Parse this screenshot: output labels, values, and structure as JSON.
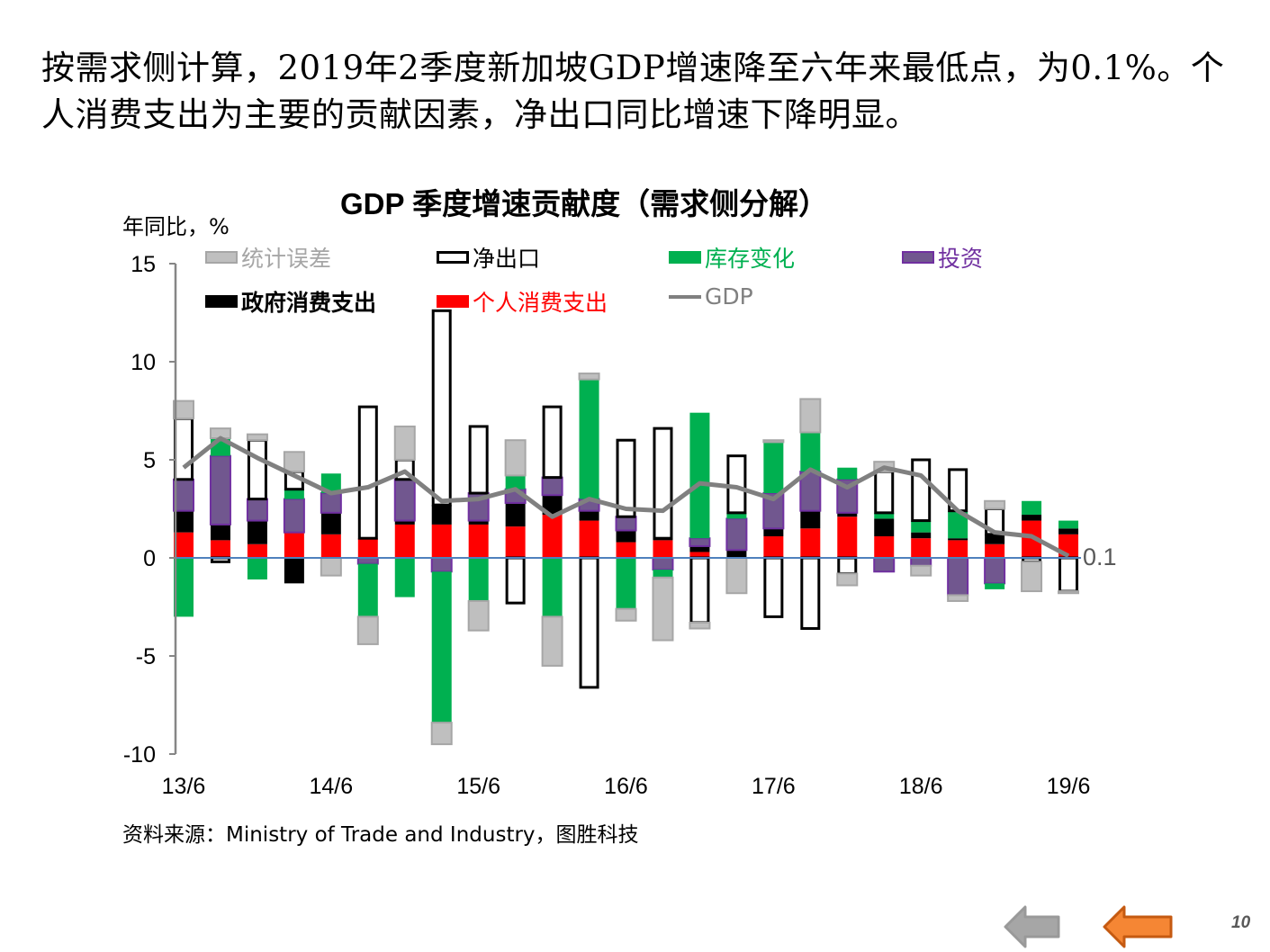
{
  "slide": {
    "headline": "按需求侧计算，2019年2季度新加坡GDP增速降至六年来最低点，为0.1%。个人消费支出为主要的贡献因素，净出口同比增速下降明显。",
    "source": "资料来源：Ministry of Trade and Industry，图胜科技",
    "page_number": "10",
    "nav": {
      "prev_icon": "arrow-left-gray",
      "back_icon": "arrow-left-orange"
    }
  },
  "chart_data": {
    "type": "bar",
    "stacked": true,
    "title": "GDP 季度增速贡献度（需求侧分解）",
    "ylabel": "年同比，%",
    "xlabel": "",
    "ylim": [
      -10,
      15
    ],
    "yticks": [
      15,
      10,
      5,
      0,
      -5,
      -10
    ],
    "x_tick_labels": [
      "13/6",
      "14/6",
      "15/6",
      "16/6",
      "17/6",
      "18/6",
      "19/6"
    ],
    "x_tick_every": 4,
    "categories": [
      "13Q2",
      "13Q3",
      "13Q4",
      "14Q1",
      "14Q2",
      "14Q3",
      "14Q4",
      "15Q1",
      "15Q2",
      "15Q3",
      "15Q4",
      "16Q1",
      "16Q2",
      "16Q3",
      "16Q4",
      "17Q1",
      "17Q2",
      "17Q3",
      "17Q4",
      "18Q1",
      "18Q2",
      "18Q3",
      "18Q4",
      "19Q1",
      "19Q2"
    ],
    "legend_position": "top",
    "series": [
      {
        "name": "个人消费支出",
        "key": "personal",
        "color": "#ff0000",
        "label_color": "#ff0000",
        "values": [
          1.3,
          0.9,
          0.7,
          1.3,
          1.2,
          1.0,
          1.7,
          1.7,
          1.7,
          1.6,
          2.2,
          1.9,
          0.8,
          0.9,
          0.3,
          0.0,
          1.1,
          1.5,
          2.1,
          1.1,
          1.0,
          0.9,
          0.7,
          1.9,
          1.2
        ]
      },
      {
        "name": "政府消费支出",
        "key": "government",
        "color": "#000000",
        "label_color": "#000000",
        "values": [
          1.1,
          0.8,
          1.2,
          -1.3,
          1.1,
          0.0,
          0.2,
          1.0,
          0.2,
          1.2,
          1.0,
          0.5,
          0.6,
          0.1,
          0.3,
          0.4,
          0.4,
          0.9,
          0.2,
          0.9,
          0.3,
          0.1,
          0.5,
          0.3,
          0.3
        ]
      },
      {
        "name": "投资",
        "key": "investment",
        "color": "#71578f",
        "label_color": "#7030a0",
        "values": [
          1.6,
          3.5,
          1.1,
          1.7,
          1.0,
          -0.3,
          2.1,
          -0.7,
          1.4,
          0.7,
          0.9,
          0.6,
          0.7,
          -0.6,
          0.4,
          1.6,
          1.8,
          2.0,
          1.7,
          -0.7,
          -0.4,
          -1.9,
          -1.3,
          0.0,
          0.0
        ]
      },
      {
        "name": "库存变化",
        "key": "inventory",
        "color": "#00b050",
        "label_color": "#00b050",
        "values": [
          -3.0,
          0.9,
          -1.1,
          0.5,
          1.0,
          -2.7,
          -2.0,
          -7.7,
          -2.2,
          0.7,
          -3.0,
          6.1,
          -2.6,
          -0.4,
          6.4,
          0.3,
          2.6,
          2.0,
          0.6,
          0.3,
          0.6,
          1.4,
          -0.3,
          0.7,
          0.4
        ]
      },
      {
        "name": "净出口",
        "key": "net_exports",
        "color": "#ffffff",
        "label_color": "#000000",
        "values": [
          3.1,
          -0.2,
          3.0,
          0.9,
          0.0,
          6.7,
          1.0,
          9.9,
          3.4,
          -2.3,
          3.6,
          -6.6,
          3.9,
          5.6,
          -3.3,
          2.9,
          -3.0,
          -3.6,
          -0.8,
          2.1,
          3.1,
          2.1,
          1.3,
          -0.2,
          -1.7
        ]
      },
      {
        "name": "统计误差",
        "key": "discrepancy",
        "color": "#bfbfbf",
        "label_color": "#a6a6a6",
        "values": [
          0.9,
          0.5,
          0.3,
          1.0,
          -0.9,
          -1.4,
          1.7,
          -1.1,
          -1.5,
          1.8,
          -2.5,
          0.3,
          -0.6,
          -3.2,
          -0.3,
          -1.8,
          0.1,
          1.7,
          -0.6,
          0.5,
          -0.5,
          -0.3,
          0.4,
          -1.5,
          -0.1
        ]
      }
    ],
    "line_series": {
      "name": "GDP",
      "color": "#808080",
      "values": [
        4.6,
        6.1,
        5.1,
        4.2,
        3.3,
        3.6,
        4.4,
        2.9,
        3.0,
        3.5,
        2.1,
        3.0,
        2.5,
        2.4,
        3.8,
        3.6,
        3.0,
        4.5,
        3.6,
        4.6,
        4.2,
        2.4,
        1.3,
        1.1,
        0.1
      ]
    },
    "annotations": [
      {
        "text": "0.1",
        "target": "19Q2",
        "series": "GDP"
      }
    ],
    "legend": [
      {
        "label": "统计误差",
        "key": "discrepancy"
      },
      {
        "label": "净出口",
        "key": "net_exports"
      },
      {
        "label": "库存变化",
        "key": "inventory"
      },
      {
        "label": "投资",
        "key": "investment"
      },
      {
        "label": "政府消费支出",
        "key": "government"
      },
      {
        "label": "个人消费支出",
        "key": "personal"
      },
      {
        "label": "GDP",
        "key": "gdp"
      }
    ],
    "zero_line_color": "#4f81bd",
    "grid": false
  }
}
